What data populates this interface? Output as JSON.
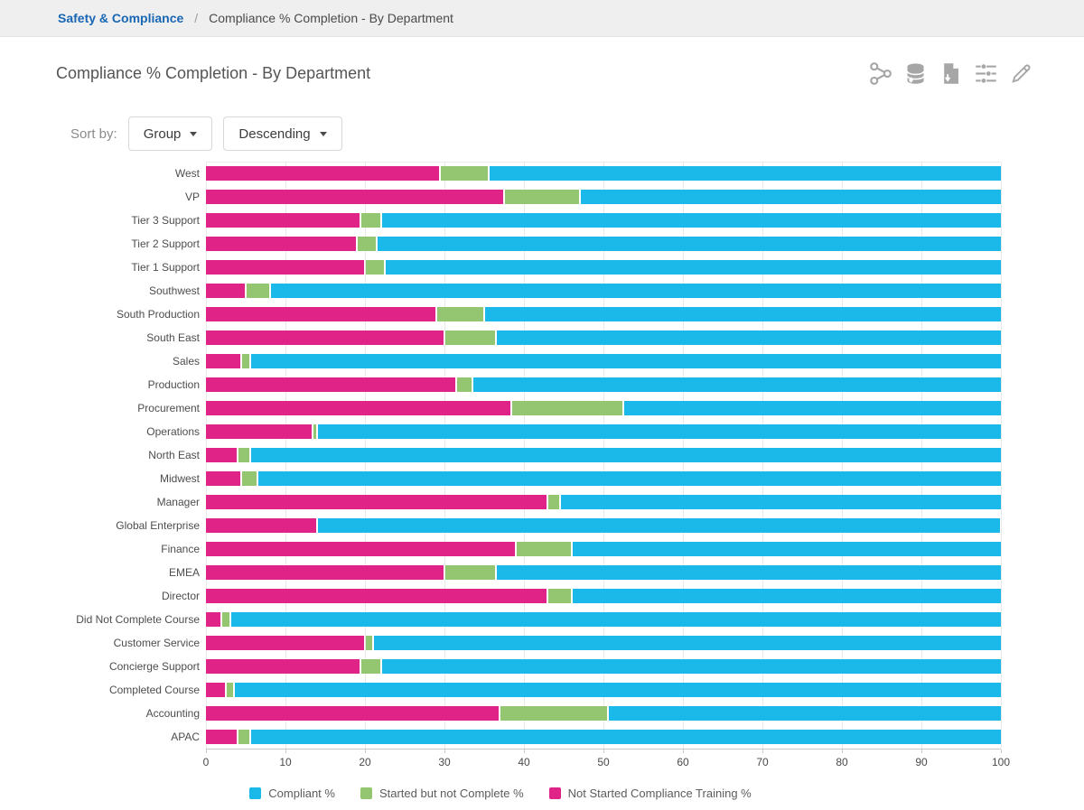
{
  "breadcrumb": {
    "link": "Safety & Compliance",
    "separator": "/",
    "current": "Compliance % Completion - By Department"
  },
  "header": {
    "title": "Compliance % Completion - By Department",
    "icons": [
      "share-icon",
      "database-export-icon",
      "file-export-icon",
      "filter-sliders-icon",
      "edit-pencil-icon"
    ],
    "icon_color": "#a6a6a6"
  },
  "sort": {
    "label": "Sort by:",
    "field": "Group",
    "direction": "Descending"
  },
  "chart_data": {
    "type": "bar",
    "orientation": "horizontal",
    "stacked": true,
    "xlim": [
      0,
      100
    ],
    "xticks": [
      0,
      10,
      20,
      30,
      40,
      50,
      60,
      70,
      80,
      90,
      100
    ],
    "grid": true,
    "categories": [
      "West",
      "VP",
      "Tier 3 Support",
      "Tier 2 Support",
      "Tier 1 Support",
      "Southwest",
      "South Production",
      "South East",
      "Sales",
      "Production",
      "Procurement",
      "Operations",
      "North East",
      "Midwest",
      "Manager",
      "Global Enterprise",
      "Finance",
      "EMEA",
      "Director",
      "Did Not Complete Course",
      "Customer Service",
      "Concierge Support",
      "Completed Course",
      "Accounting",
      "APAC"
    ],
    "series": [
      {
        "name": "Not Started Compliance Training %",
        "color": "#e02387",
        "values": [
          29.5,
          37.5,
          19.5,
          19,
          20,
          5,
          29,
          30,
          4.5,
          31.5,
          38.5,
          13.5,
          4,
          4.5,
          43,
          14,
          39,
          30,
          43,
          2,
          20,
          19.5,
          2.5,
          37,
          4
        ]
      },
      {
        "name": "Started but not Complete %",
        "color": "#94c571",
        "values": [
          6,
          9.5,
          2.5,
          2.5,
          2.5,
          3,
          6,
          6.5,
          1,
          2,
          14,
          0.5,
          1.5,
          2,
          1.5,
          0,
          7,
          6.5,
          3,
          1,
          1,
          2.5,
          1,
          13.5,
          1.5
        ]
      },
      {
        "name": "Compliant %",
        "color": "#1ab9ea",
        "values": [
          64.5,
          53,
          78,
          78.5,
          77.5,
          92,
          65,
          63.5,
          94.5,
          66.5,
          47.5,
          86,
          94.5,
          93.5,
          55.5,
          86,
          54,
          63.5,
          54,
          97,
          79,
          78,
          96.5,
          49.5,
          94.5
        ]
      }
    ],
    "legend": [
      {
        "label": "Compliant %",
        "color": "#1ab9ea"
      },
      {
        "label": "Started but not Complete %",
        "color": "#94c571"
      },
      {
        "label": "Not Started Compliance Training %",
        "color": "#e02387"
      }
    ],
    "legend_position": "bottom"
  }
}
